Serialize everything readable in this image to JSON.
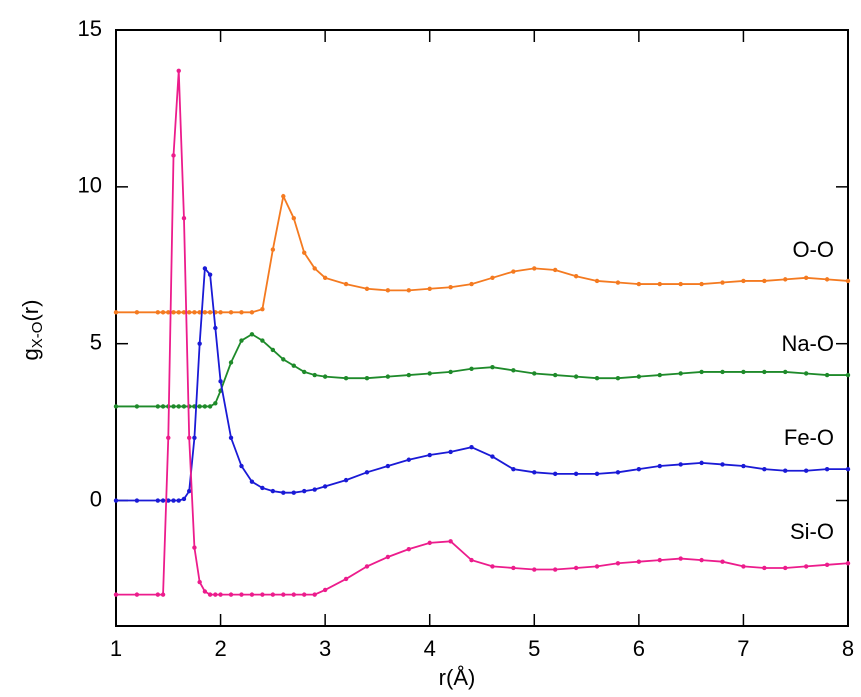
{
  "chart_data": {
    "type": "line",
    "xlabel": "r(Å)",
    "ylabel": "g",
    "ylabel_sub": "X-O",
    "ylabel_tail": "(r)",
    "xlim": [
      1,
      8
    ],
    "xticks": [
      1,
      2,
      3,
      4,
      5,
      6,
      7,
      8
    ],
    "ylim": [
      -4,
      15
    ],
    "yticks": [
      0,
      5,
      10,
      15
    ],
    "x": [
      1.0,
      1.2,
      1.4,
      1.45,
      1.5,
      1.55,
      1.6,
      1.65,
      1.7,
      1.75,
      1.8,
      1.85,
      1.9,
      1.95,
      2.0,
      2.1,
      2.2,
      2.3,
      2.4,
      2.5,
      2.6,
      2.7,
      2.8,
      2.9,
      3.0,
      3.2,
      3.4,
      3.6,
      3.8,
      4.0,
      4.2,
      4.4,
      4.6,
      4.8,
      5.0,
      5.2,
      5.4,
      5.6,
      5.8,
      6.0,
      6.2,
      6.4,
      6.6,
      6.8,
      7.0,
      7.2,
      7.4,
      7.6,
      7.8,
      8.0
    ],
    "series": [
      {
        "name": "O-O",
        "color": "#f47a20",
        "values": [
          6,
          6,
          6,
          6,
          6,
          6,
          6,
          6,
          6,
          6,
          6,
          6,
          6,
          6,
          6,
          6,
          6,
          6,
          6.1,
          8.0,
          9.7,
          9.0,
          7.9,
          7.4,
          7.1,
          6.9,
          6.75,
          6.7,
          6.7,
          6.75,
          6.8,
          6.9,
          7.1,
          7.3,
          7.4,
          7.35,
          7.15,
          7.0,
          6.95,
          6.9,
          6.9,
          6.9,
          6.9,
          6.95,
          7.0,
          7.0,
          7.05,
          7.1,
          7.05,
          7.0
        ]
      },
      {
        "name": "Na-O",
        "color": "#1e8a2a",
        "values": [
          3,
          3,
          3,
          3,
          3,
          3,
          3,
          3,
          3,
          3,
          3,
          3,
          3,
          3.1,
          3.5,
          4.4,
          5.1,
          5.3,
          5.1,
          4.8,
          4.5,
          4.3,
          4.1,
          4.0,
          3.95,
          3.9,
          3.9,
          3.95,
          4.0,
          4.05,
          4.1,
          4.2,
          4.25,
          4.15,
          4.05,
          4.0,
          3.95,
          3.9,
          3.9,
          3.95,
          4.0,
          4.05,
          4.1,
          4.1,
          4.1,
          4.1,
          4.1,
          4.05,
          4.0,
          4.0
        ]
      },
      {
        "name": "Fe-O",
        "color": "#1a1ad6",
        "values": [
          0,
          0,
          0,
          0,
          0,
          0,
          0,
          0.05,
          0.3,
          2,
          5,
          7.4,
          7.2,
          5.5,
          3.8,
          2.0,
          1.1,
          0.6,
          0.4,
          0.3,
          0.25,
          0.25,
          0.3,
          0.35,
          0.45,
          0.65,
          0.9,
          1.1,
          1.3,
          1.45,
          1.55,
          1.7,
          1.4,
          1.0,
          0.9,
          0.85,
          0.85,
          0.85,
          0.9,
          1.0,
          1.1,
          1.15,
          1.2,
          1.15,
          1.1,
          1.0,
          0.95,
          0.95,
          1.0,
          1.0
        ]
      },
      {
        "name": "Si-O",
        "color": "#ec1c8c",
        "values": [
          -3,
          -3,
          -3,
          -3,
          2,
          11,
          13.7,
          9,
          2,
          -1.5,
          -2.6,
          -2.9,
          -3,
          -3,
          -3,
          -3,
          -3,
          -3,
          -3,
          -3,
          -3,
          -3,
          -3,
          -3,
          -2.85,
          -2.5,
          -2.1,
          -1.8,
          -1.55,
          -1.35,
          -1.3,
          -1.9,
          -2.1,
          -2.15,
          -2.2,
          -2.2,
          -2.15,
          -2.1,
          -2.0,
          -1.95,
          -1.9,
          -1.85,
          -1.9,
          -1.95,
          -2.1,
          -2.15,
          -2.15,
          -2.1,
          -2.05,
          -2.0
        ]
      }
    ]
  }
}
